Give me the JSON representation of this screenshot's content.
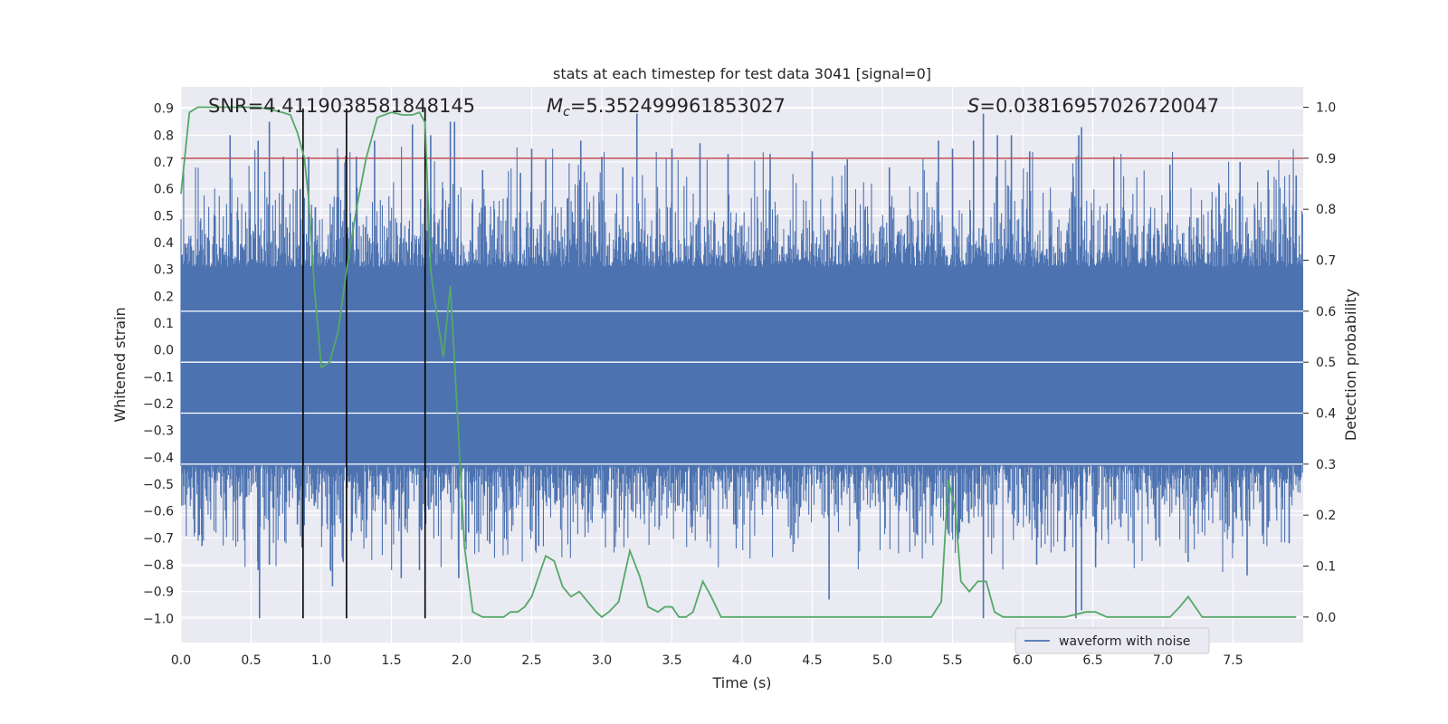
{
  "chart_data": {
    "type": "line",
    "title": "stats at each timestep for test data 3041 [signal=0]",
    "xlabel": "Time (s)",
    "ylabel": "Whitened strain",
    "y2label": "Detection probability",
    "xlim": [
      0,
      8
    ],
    "ylim": [
      -1.09,
      0.98
    ],
    "y2lim": [
      -0.05,
      1.04
    ],
    "x_ticks": [
      "0.0",
      "0.5",
      "1.0",
      "1.5",
      "2.0",
      "2.5",
      "3.0",
      "3.5",
      "4.0",
      "4.5",
      "5.0",
      "5.5",
      "6.0",
      "6.5",
      "7.0",
      "7.5"
    ],
    "y_ticks": [
      "0.9",
      "0.8",
      "0.7",
      "0.6",
      "0.5",
      "0.4",
      "0.3",
      "0.2",
      "0.1",
      "0.0",
      "−0.1",
      "−0.2",
      "−0.3",
      "−0.4",
      "−0.5",
      "−0.6",
      "−0.7",
      "−0.8",
      "−0.9",
      "−1.0"
    ],
    "y2_ticks": [
      "1.0",
      "0.9",
      "0.8",
      "0.7",
      "0.6",
      "0.5",
      "0.4",
      "0.3",
      "0.2",
      "0.1",
      "0.0"
    ],
    "grid": true,
    "legend_position": "lower-right",
    "annotations": {
      "snr": "SNR=4.4119038581848145",
      "mc_symbol": "M",
      "mc_sub": "c",
      "mc_value": "=5.352499961853027",
      "s_symbol": "S",
      "s_value": "=0.03816957026720047"
    },
    "threshold": {
      "value": 0.9,
      "axis": "right",
      "color": "#c44e52"
    },
    "vertical_lines": [
      0.87,
      1.18,
      1.74
    ],
    "series": [
      {
        "name": "waveform with noise",
        "axis": "left",
        "color": "#4c72b0",
        "kind": "noise-band",
        "core_range": [
          -0.43,
          0.31
        ],
        "peaks_positive": [
          [
            0.35,
            0.8
          ],
          [
            0.55,
            0.78
          ],
          [
            0.63,
            0.85
          ],
          [
            0.73,
            0.72
          ],
          [
            0.85,
            0.6
          ],
          [
            0.91,
            0.72
          ],
          [
            1.12,
            0.72
          ],
          [
            1.25,
            0.72
          ],
          [
            1.38,
            0.78
          ],
          [
            1.65,
            0.84
          ],
          [
            1.78,
            0.8
          ],
          [
            1.92,
            0.85
          ],
          [
            1.95,
            0.85
          ],
          [
            2.15,
            0.67
          ],
          [
            2.42,
            0.66
          ],
          [
            2.5,
            0.75
          ],
          [
            2.6,
            0.71
          ],
          [
            2.85,
            0.78
          ],
          [
            3.0,
            0.72
          ],
          [
            3.15,
            0.68
          ],
          [
            3.25,
            0.88
          ],
          [
            3.5,
            0.75
          ],
          [
            3.7,
            0.77
          ],
          [
            3.9,
            0.73
          ],
          [
            4.2,
            0.73
          ],
          [
            4.5,
            0.74
          ],
          [
            4.75,
            0.71
          ],
          [
            5.05,
            0.68
          ],
          [
            5.4,
            0.78
          ],
          [
            5.5,
            0.75
          ],
          [
            5.65,
            0.78
          ],
          [
            5.72,
            0.88
          ],
          [
            5.82,
            0.8
          ],
          [
            5.92,
            0.8
          ],
          [
            6.05,
            0.74
          ],
          [
            6.4,
            0.8
          ],
          [
            6.42,
            0.83
          ],
          [
            6.65,
            0.72
          ],
          [
            7.05,
            0.69
          ],
          [
            7.55,
            0.7
          ],
          [
            7.75,
            0.67
          ],
          [
            7.95,
            0.65
          ]
        ],
        "peaks_negative": [
          [
            0.13,
            -0.69
          ],
          [
            0.15,
            -0.73
          ],
          [
            0.55,
            -0.82
          ],
          [
            0.56,
            -1.0
          ],
          [
            0.63,
            -0.8
          ],
          [
            0.83,
            -0.65
          ],
          [
            0.95,
            -0.58
          ],
          [
            1.08,
            -0.88
          ],
          [
            1.22,
            -0.68
          ],
          [
            1.32,
            -0.7
          ],
          [
            1.46,
            -0.65
          ],
          [
            1.57,
            -0.85
          ],
          [
            1.7,
            -0.82
          ],
          [
            1.98,
            -0.85
          ],
          [
            2.05,
            -0.68
          ],
          [
            2.55,
            -0.73
          ],
          [
            2.9,
            -0.64
          ],
          [
            3.1,
            -0.68
          ],
          [
            3.55,
            -0.58
          ],
          [
            3.95,
            -0.65
          ],
          [
            4.62,
            -0.93
          ],
          [
            4.82,
            -0.63
          ],
          [
            5.25,
            -0.69
          ],
          [
            5.55,
            -0.68
          ],
          [
            5.72,
            -1.0
          ],
          [
            6.1,
            -0.8
          ],
          [
            6.3,
            -0.75
          ],
          [
            6.38,
            -1.0
          ],
          [
            6.42,
            -0.97
          ],
          [
            6.52,
            -0.81
          ],
          [
            6.7,
            -0.66
          ],
          [
            6.95,
            -0.71
          ],
          [
            7.18,
            -0.79
          ],
          [
            7.5,
            -0.72
          ],
          [
            7.6,
            -0.84
          ],
          [
            7.75,
            -0.66
          ],
          [
            7.9,
            -0.72
          ]
        ]
      },
      {
        "name": "",
        "axis": "right",
        "color": "#55a868",
        "x": [
          0.0,
          0.06,
          0.12,
          0.25,
          0.4,
          0.55,
          0.65,
          0.72,
          0.78,
          0.83,
          0.88,
          0.91,
          0.95,
          1.0,
          1.06,
          1.12,
          1.18,
          1.25,
          1.32,
          1.4,
          1.5,
          1.58,
          1.65,
          1.7,
          1.74,
          1.78,
          1.82,
          1.87,
          1.92,
          1.98,
          2.02,
          2.08,
          2.15,
          2.2,
          2.3,
          2.35,
          2.4,
          2.45,
          2.5,
          2.55,
          2.6,
          2.66,
          2.72,
          2.78,
          2.84,
          2.9,
          2.96,
          3.0,
          3.05,
          3.12,
          3.2,
          3.27,
          3.33,
          3.4,
          3.45,
          3.5,
          3.55,
          3.6,
          3.65,
          3.72,
          3.78,
          3.85,
          3.95,
          4.05,
          4.2,
          4.4,
          4.6,
          4.8,
          5.0,
          5.2,
          5.3,
          5.35,
          5.42,
          5.47,
          5.52,
          5.56,
          5.62,
          5.68,
          5.74,
          5.8,
          5.86,
          5.93,
          6.0,
          6.1,
          6.3,
          6.45,
          6.52,
          6.6,
          6.75,
          6.95,
          7.05,
          7.12,
          7.18,
          7.28,
          7.45,
          7.55,
          7.7,
          7.95
        ],
        "y": [
          0.83,
          0.99,
          1.0,
          1.0,
          1.0,
          1.0,
          0.995,
          0.99,
          0.985,
          0.95,
          0.9,
          0.82,
          0.65,
          0.49,
          0.5,
          0.56,
          0.68,
          0.8,
          0.9,
          0.98,
          0.99,
          0.985,
          0.985,
          0.99,
          0.97,
          0.68,
          0.6,
          0.51,
          0.65,
          0.35,
          0.14,
          0.01,
          0.0,
          0.0,
          0.0,
          0.01,
          0.01,
          0.02,
          0.04,
          0.08,
          0.12,
          0.11,
          0.06,
          0.04,
          0.05,
          0.03,
          0.01,
          0.0,
          0.01,
          0.03,
          0.13,
          0.08,
          0.02,
          0.01,
          0.02,
          0.02,
          0.0,
          0.0,
          0.01,
          0.07,
          0.04,
          0.0,
          0.0,
          0.0,
          0.0,
          0.0,
          0.0,
          0.0,
          0.0,
          0.0,
          0.0,
          0.0,
          0.03,
          0.27,
          0.21,
          0.07,
          0.05,
          0.07,
          0.07,
          0.01,
          0.0,
          0.0,
          0.0,
          0.0,
          0.0,
          0.01,
          0.01,
          0.0,
          0.0,
          0.0,
          0.0,
          0.02,
          0.04,
          0.0,
          0.0,
          0.0,
          0.0,
          0.0
        ]
      }
    ]
  }
}
